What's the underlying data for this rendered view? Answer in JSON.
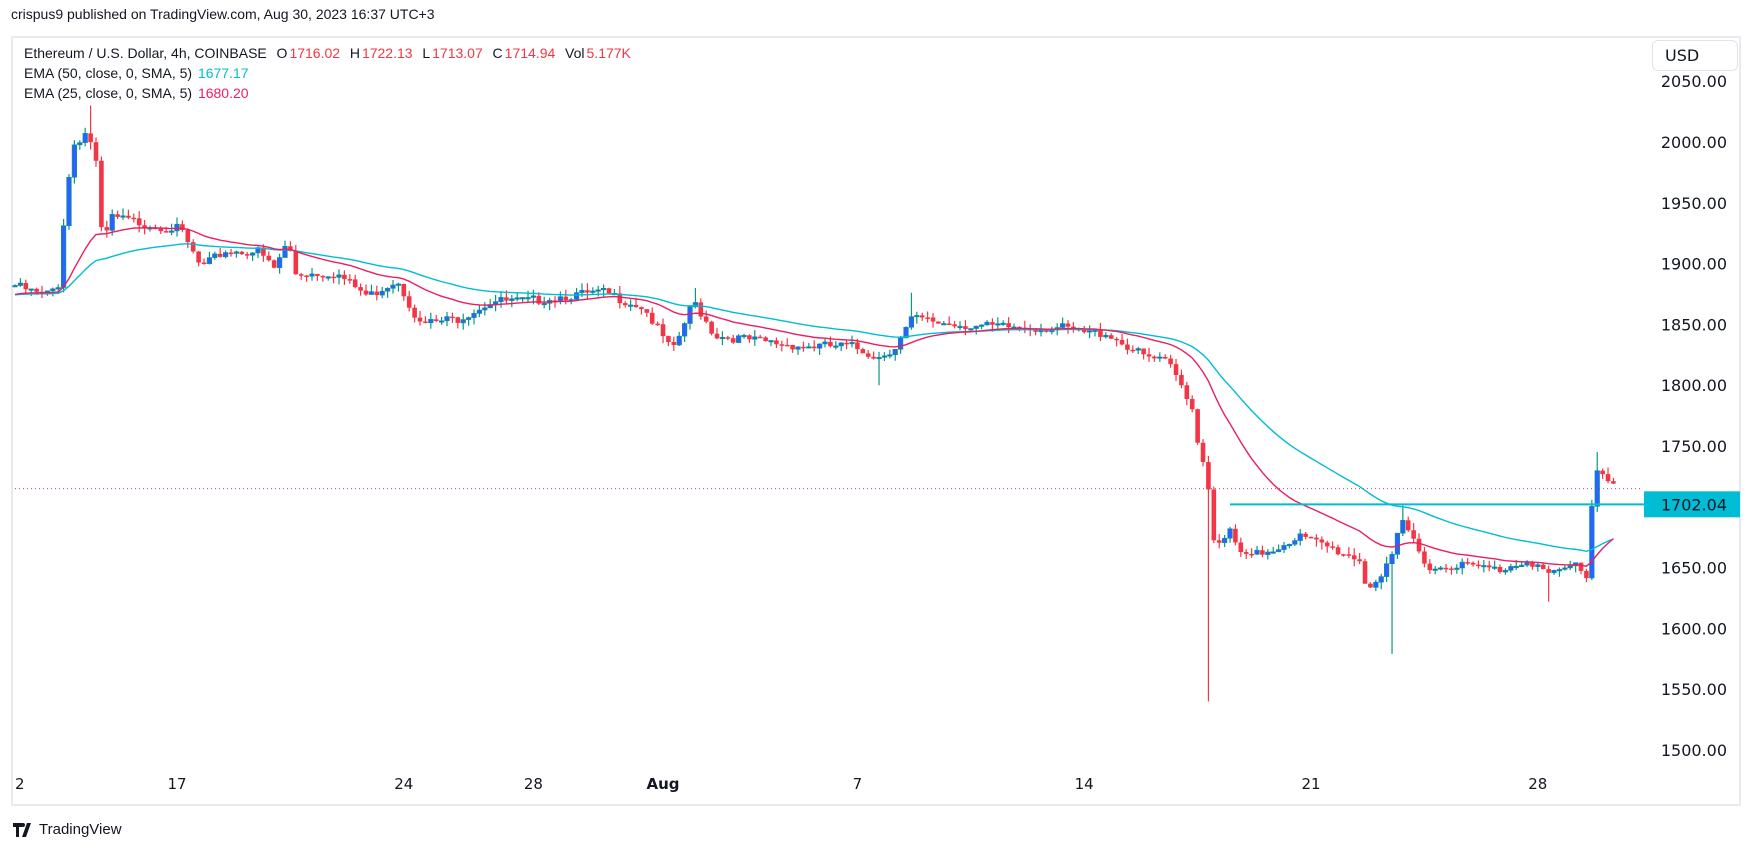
{
  "header": {
    "published": "crispus9 published on TradingView.com, Aug 30, 2023 16:37 UTC+3"
  },
  "legend": {
    "symbol": "Ethereum / U.S. Dollar, 4h, COINBASE",
    "o_label": "O",
    "o": "1716.02",
    "h_label": "H",
    "h": "1722.13",
    "l_label": "L",
    "l": "1713.07",
    "c_label": "C",
    "c": "1714.94",
    "vol_label": "Vol",
    "vol": "5.177K",
    "ema50_label": "EMA (50, close, 0, SMA, 5)",
    "ema50": "1677.17",
    "ema25_label": "EMA (25, close, 0, SMA, 5)",
    "ema25": "1680.20"
  },
  "currency_button": "USD",
  "branding": "TradingView",
  "colors": {
    "up_body": "#2962ff",
    "up_wick": "#089981",
    "down": "#f23645",
    "ema50": "#00bcd4",
    "ema25": "#e91e63",
    "level": "#00bcd4"
  },
  "chart_data": {
    "type": "candlestick",
    "title": "Ethereum / U.S. Dollar, 4h, COINBASE",
    "ylim": [
      1465,
      2065
    ],
    "y_ticks": [
      "2050.00",
      "2000.00",
      "1950.00",
      "1900.00",
      "1850.00",
      "1800.00",
      "1750.00",
      "1650.00",
      "1600.00",
      "1550.00",
      "1500.00"
    ],
    "y_tick_values": [
      2050,
      2000,
      1950,
      1900,
      1850,
      1800,
      1750,
      1650,
      1600,
      1550,
      1500
    ],
    "x_unit": "days since Jul 12",
    "x_ticks": [
      {
        "label": "2",
        "t": 0
      },
      {
        "label": "17",
        "t": 5
      },
      {
        "label": "24",
        "t": 12
      },
      {
        "label": "28",
        "t": 16
      },
      {
        "label": "Aug",
        "t": 20
      },
      {
        "label": "7",
        "t": 26
      },
      {
        "label": "14",
        "t": 33
      },
      {
        "label": "21",
        "t": 40
      },
      {
        "label": "28",
        "t": 47
      }
    ],
    "candle_interval_days": 0.16667,
    "close_waypoints": [
      [
        0,
        1882
      ],
      [
        0.9,
        1873
      ],
      [
        1.33,
        1882
      ],
      [
        1.5,
        1933
      ],
      [
        1.78,
        1997
      ],
      [
        2.2,
        2008
      ],
      [
        2.47,
        1993
      ],
      [
        2.7,
        1915
      ],
      [
        2.99,
        1938
      ],
      [
        4.0,
        1933
      ],
      [
        5.1,
        1928
      ],
      [
        5.75,
        1896
      ],
      [
        6.45,
        1910
      ],
      [
        7.5,
        1910
      ],
      [
        8,
        1896
      ],
      [
        8.45,
        1919
      ],
      [
        8.6,
        1892
      ],
      [
        9.9,
        1892
      ],
      [
        10.9,
        1873
      ],
      [
        11.8,
        1887
      ],
      [
        12.5,
        1850
      ],
      [
        13.7,
        1855
      ],
      [
        14.7,
        1869
      ],
      [
        15.8,
        1869
      ],
      [
        16.8,
        1873
      ],
      [
        18.2,
        1876
      ],
      [
        19.4,
        1864
      ],
      [
        20.3,
        1827
      ],
      [
        20.95,
        1869
      ],
      [
        21.6,
        1841
      ],
      [
        23.0,
        1836
      ],
      [
        24.4,
        1832
      ],
      [
        25.8,
        1832
      ],
      [
        26.65,
        1823
      ],
      [
        27.2,
        1832
      ],
      [
        27.7,
        1855
      ],
      [
        28.4,
        1852
      ],
      [
        29.9,
        1848
      ],
      [
        32.3,
        1847
      ],
      [
        32.9,
        1843
      ],
      [
        33.7,
        1843
      ],
      [
        34.8,
        1824
      ],
      [
        35.6,
        1818
      ],
      [
        36.0,
        1800
      ],
      [
        36.3,
        1786
      ],
      [
        36.6,
        1740
      ],
      [
        36.8,
        1735
      ],
      [
        36.9,
        1680
      ],
      [
        37.2,
        1666
      ],
      [
        37.5,
        1680
      ],
      [
        37.9,
        1657
      ],
      [
        38.9,
        1666
      ],
      [
        39.6,
        1676
      ],
      [
        40.6,
        1666
      ],
      [
        41.5,
        1657
      ],
      [
        41.7,
        1634
      ],
      [
        42.2,
        1643
      ],
      [
        42.5,
        1657
      ],
      [
        42.8,
        1689
      ],
      [
        43.2,
        1671
      ],
      [
        43.7,
        1648
      ],
      [
        44.4,
        1653
      ],
      [
        45.8,
        1648
      ],
      [
        46.7,
        1657
      ],
      [
        47.4,
        1643
      ],
      [
        48.2,
        1653
      ],
      [
        48.5,
        1643
      ],
      [
        48.7,
        1712
      ],
      [
        48.85,
        1733
      ],
      [
        49.3,
        1720
      ],
      [
        49.5,
        1715
      ]
    ],
    "notable_wicks": [
      [
        2.3,
        2030,
        "high"
      ],
      [
        36.9,
        1540,
        "low"
      ],
      [
        42.5,
        1579,
        "low"
      ],
      [
        42.8,
        1701,
        "high"
      ],
      [
        47.4,
        1622,
        "low"
      ],
      [
        48.85,
        1745,
        "high"
      ],
      [
        20.95,
        1880,
        "high"
      ],
      [
        27.7,
        1876,
        "high"
      ],
      [
        26.65,
        1800,
        "low"
      ]
    ],
    "last_price": 1714.94,
    "horizontal_level": {
      "value": 1702.04,
      "label": "1702.04",
      "from_t": 37.5
    },
    "series": [
      {
        "name": "EMA 50",
        "period": 50
      },
      {
        "name": "EMA 25",
        "period": 25
      }
    ]
  }
}
